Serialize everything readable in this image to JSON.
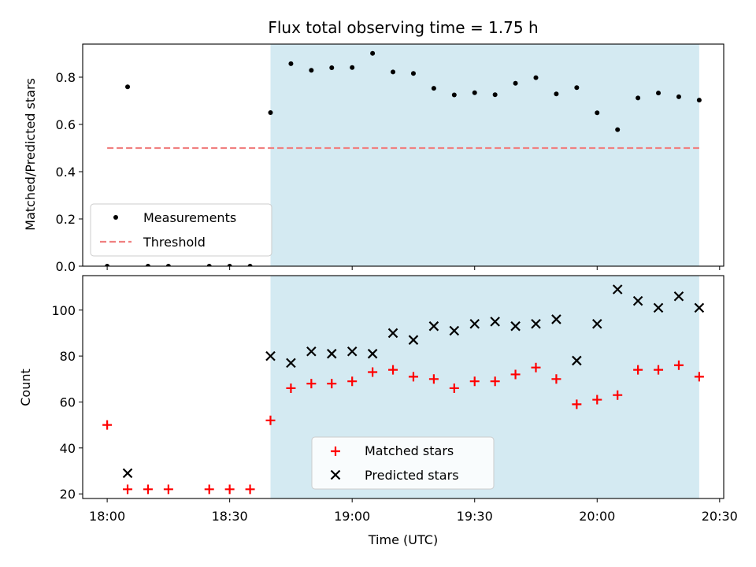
{
  "chart_data": [
    {
      "type": "scatter",
      "title": "Flux total observing time = 1.75 h",
      "xlabel": "",
      "ylabel": "Matched/Predicted stars",
      "ylim": [
        0,
        0.94
      ],
      "yticks": [
        "0.0",
        "0.2",
        "0.4",
        "0.6",
        "0.8"
      ],
      "ytick_values": [
        0.0,
        0.2,
        0.4,
        0.6,
        0.8
      ],
      "shaded_region": {
        "x_start": "18:40",
        "x_end": "20:25",
        "color": "#add8e6"
      },
      "threshold": {
        "name": "Threshold",
        "value": 0.5,
        "x_start": "18:00",
        "x_end": "20:25",
        "color": "#f08080"
      },
      "legend": {
        "placement": "lower-left",
        "entries": [
          "Measurements",
          "Threshold"
        ]
      },
      "series": [
        {
          "name": "Measurements",
          "marker": "dot",
          "color": "#000000",
          "points": [
            [
              "18:00",
              0.0
            ],
            [
              "18:05",
              0.759
            ],
            [
              "18:10",
              0.0
            ],
            [
              "18:15",
              0.0
            ],
            [
              "18:25",
              0.0
            ],
            [
              "18:30",
              0.0
            ],
            [
              "18:35",
              0.0
            ],
            [
              "18:40",
              0.65
            ],
            [
              "18:45",
              0.857
            ],
            [
              "18:50",
              0.829
            ],
            [
              "18:55",
              0.84
            ],
            [
              "19:00",
              0.841
            ],
            [
              "19:05",
              0.901
            ],
            [
              "19:10",
              0.822
            ],
            [
              "19:15",
              0.816
            ],
            [
              "19:20",
              0.753
            ],
            [
              "19:25",
              0.725
            ],
            [
              "19:30",
              0.734
            ],
            [
              "19:35",
              0.726
            ],
            [
              "19:40",
              0.774
            ],
            [
              "19:45",
              0.798
            ],
            [
              "19:50",
              0.729
            ],
            [
              "19:55",
              0.756
            ],
            [
              "20:00",
              0.649
            ],
            [
              "20:05",
              0.578
            ],
            [
              "20:10",
              0.712
            ],
            [
              "20:15",
              0.733
            ],
            [
              "20:20",
              0.717
            ],
            [
              "20:25",
              0.703
            ]
          ]
        }
      ]
    },
    {
      "type": "scatter",
      "title": "",
      "xlabel": "Time (UTC)",
      "ylabel": "Count",
      "ylim": [
        18,
        115
      ],
      "yticks": [
        "20",
        "40",
        "60",
        "80",
        "100"
      ],
      "ytick_values": [
        20,
        40,
        60,
        80,
        100
      ],
      "xticks": [
        "18:00",
        "18:30",
        "19:00",
        "19:30",
        "20:00",
        "20:30"
      ],
      "xlim": [
        "17:54",
        "20:31"
      ],
      "shaded_region": {
        "x_start": "18:40",
        "x_end": "20:25",
        "color": "#add8e6"
      },
      "legend": {
        "placement": "lower-center",
        "entries": [
          "Matched stars",
          "Predicted stars"
        ]
      },
      "series": [
        {
          "name": "Matched stars",
          "marker": "plus",
          "color": "#ff0000",
          "points": [
            [
              "18:00",
              50
            ],
            [
              "18:05",
              22
            ],
            [
              "18:10",
              22
            ],
            [
              "18:15",
              22
            ],
            [
              "18:25",
              22
            ],
            [
              "18:30",
              22
            ],
            [
              "18:35",
              22
            ],
            [
              "18:40",
              52
            ],
            [
              "18:45",
              66
            ],
            [
              "18:50",
              68
            ],
            [
              "18:55",
              68
            ],
            [
              "19:00",
              69
            ],
            [
              "19:05",
              73
            ],
            [
              "19:10",
              74
            ],
            [
              "19:15",
              71
            ],
            [
              "19:20",
              70
            ],
            [
              "19:25",
              66
            ],
            [
              "19:30",
              69
            ],
            [
              "19:35",
              69
            ],
            [
              "19:40",
              72
            ],
            [
              "19:45",
              75
            ],
            [
              "19:50",
              70
            ],
            [
              "19:55",
              59
            ],
            [
              "20:00",
              61
            ],
            [
              "20:05",
              63
            ],
            [
              "20:10",
              74
            ],
            [
              "20:15",
              74
            ],
            [
              "20:20",
              76
            ],
            [
              "20:25",
              71
            ]
          ]
        },
        {
          "name": "Predicted stars",
          "marker": "x",
          "color": "#000000",
          "points": [
            [
              "18:05",
              29
            ],
            [
              "18:40",
              80
            ],
            [
              "18:45",
              77
            ],
            [
              "18:50",
              82
            ],
            [
              "18:55",
              81
            ],
            [
              "19:00",
              82
            ],
            [
              "19:05",
              81
            ],
            [
              "19:10",
              90
            ],
            [
              "19:15",
              87
            ],
            [
              "19:20",
              93
            ],
            [
              "19:25",
              91
            ],
            [
              "19:30",
              94
            ],
            [
              "19:35",
              95
            ],
            [
              "19:40",
              93
            ],
            [
              "19:45",
              94
            ],
            [
              "19:50",
              96
            ],
            [
              "19:55",
              78
            ],
            [
              "20:00",
              94
            ],
            [
              "20:05",
              109
            ],
            [
              "20:10",
              104
            ],
            [
              "20:15",
              101
            ],
            [
              "20:20",
              106
            ],
            [
              "20:25",
              101
            ]
          ]
        }
      ]
    }
  ]
}
